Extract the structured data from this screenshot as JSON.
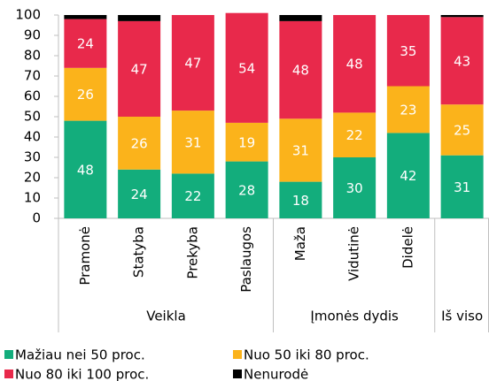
{
  "chart_data": {
    "type": "stacked_bar",
    "categories": [
      "Pramonė",
      "Statyba",
      "Prekyba",
      "Paslaugos",
      "Maža",
      "Vidutinė",
      "Didelė",
      ""
    ],
    "groups": [
      "Veikla",
      "Įmonės dydis",
      "Iš viso"
    ],
    "category_groups": [
      0,
      0,
      0,
      0,
      1,
      1,
      1,
      2
    ],
    "series": [
      {
        "name": "Mažiau nei 50 proc.",
        "color": "#13ad7c",
        "values": [
          48,
          24,
          22,
          28,
          18,
          30,
          42,
          31
        ],
        "show_values": true
      },
      {
        "name": "Nuo 50 iki 80 proc.",
        "color": "#fbb31b",
        "values": [
          26,
          26,
          31,
          19,
          31,
          22,
          23,
          25
        ],
        "show_values": true
      },
      {
        "name": "Nuo 80 iki 100 proc.",
        "color": "#e8294b",
        "values": [
          24,
          47,
          47,
          54,
          48,
          48,
          35,
          43
        ],
        "show_values": true
      },
      {
        "name": "Nenurodė",
        "color": "#000000",
        "values": [
          2,
          3,
          0,
          0,
          3,
          0,
          0,
          1
        ],
        "show_values": false
      }
    ],
    "ylim": [
      0,
      100
    ],
    "yticks": [
      0,
      10,
      20,
      30,
      40,
      50,
      60,
      70,
      80,
      90,
      100
    ],
    "grid": false
  }
}
